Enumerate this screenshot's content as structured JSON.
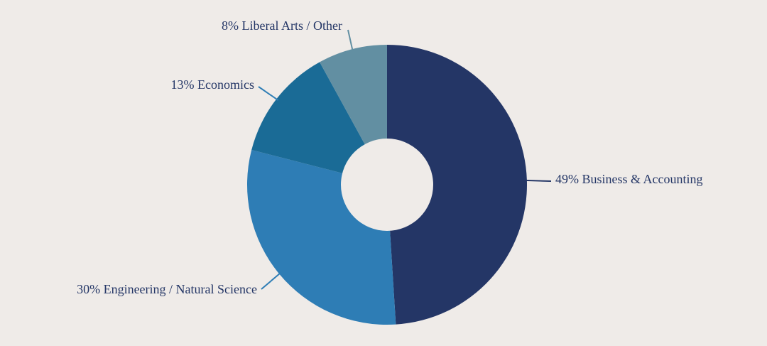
{
  "chart_data": {
    "type": "pie",
    "variant": "donut",
    "slices": [
      {
        "category": "Business & Accounting",
        "value": 49,
        "label": "49% Business & Accounting",
        "color": "#243666"
      },
      {
        "category": "Engineering / Natural Science",
        "value": 30,
        "label": "30% Engineering / Natural Science",
        "color": "#2e7db5"
      },
      {
        "category": "Economics",
        "value": 13,
        "label": "13% Economics",
        "color": "#1a6b96"
      },
      {
        "category": "Liberal Arts / Other",
        "value": 8,
        "label": "8% Liberal Arts / Other",
        "color": "#628fa2"
      }
    ],
    "title": "",
    "legend": "none",
    "start_angle": "top",
    "direction": "clockwise",
    "label_color": "#243666",
    "leader_line_color": "#2e7db5",
    "background_color": "#efebe8"
  }
}
